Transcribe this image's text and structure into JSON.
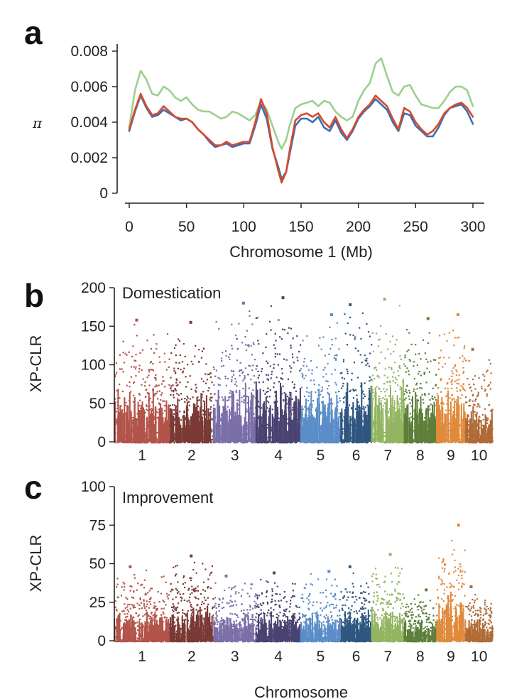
{
  "chart_data": [
    {
      "panel": "a",
      "type": "line",
      "ylabel": "π",
      "xlabel": "Chromosome 1 (Mb)",
      "xlim": [
        0,
        300
      ],
      "ylim": [
        0,
        0.008
      ],
      "xticks": [
        0,
        50,
        100,
        150,
        200,
        250,
        300
      ],
      "yticks": [
        "0",
        "0.002",
        "0.004",
        "0.006",
        "0.008"
      ],
      "x": [
        0,
        5,
        10,
        15,
        20,
        25,
        30,
        35,
        40,
        45,
        50,
        55,
        60,
        65,
        70,
        75,
        80,
        85,
        90,
        95,
        100,
        105,
        110,
        115,
        120,
        125,
        130,
        133,
        137,
        140,
        145,
        150,
        155,
        160,
        165,
        170,
        175,
        180,
        185,
        190,
        195,
        200,
        205,
        210,
        215,
        220,
        225,
        230,
        235,
        240,
        245,
        250,
        255,
        260,
        265,
        270,
        275,
        280,
        285,
        290,
        295,
        300
      ],
      "series": [
        {
          "color": "#9ecf8f",
          "values": [
            0.0037,
            0.0058,
            0.0069,
            0.0064,
            0.0056,
            0.0055,
            0.006,
            0.0058,
            0.0054,
            0.0052,
            0.0054,
            0.005,
            0.0047,
            0.0046,
            0.0046,
            0.0044,
            0.0042,
            0.0043,
            0.0046,
            0.0045,
            0.0043,
            0.0041,
            0.0044,
            0.0052,
            0.0047,
            0.0038,
            0.0029,
            0.0025,
            0.003,
            0.0038,
            0.0048,
            0.005,
            0.0051,
            0.0052,
            0.0049,
            0.0052,
            0.0051,
            0.0046,
            0.0043,
            0.0041,
            0.0043,
            0.0052,
            0.0058,
            0.0062,
            0.0073,
            0.0076,
            0.0066,
            0.0057,
            0.0055,
            0.006,
            0.0061,
            0.0055,
            0.005,
            0.0049,
            0.0048,
            0.0048,
            0.0052,
            0.0057,
            0.006,
            0.006,
            0.0058,
            0.0049
          ]
        },
        {
          "color": "#3b6fb6",
          "values": [
            0.0035,
            0.0046,
            0.0055,
            0.0048,
            0.0043,
            0.0044,
            0.0047,
            0.0045,
            0.0043,
            0.0041,
            0.0042,
            0.004,
            0.0036,
            0.0033,
            0.0029,
            0.0026,
            0.0027,
            0.0028,
            0.0026,
            0.0027,
            0.0028,
            0.0028,
            0.0038,
            0.005,
            0.0042,
            0.0025,
            0.0015,
            0.0008,
            0.0012,
            0.0022,
            0.0038,
            0.0042,
            0.0042,
            0.004,
            0.0043,
            0.0037,
            0.0035,
            0.0041,
            0.0034,
            0.003,
            0.0035,
            0.0042,
            0.0046,
            0.0049,
            0.0053,
            0.005,
            0.0047,
            0.004,
            0.0035,
            0.0045,
            0.0044,
            0.0038,
            0.0035,
            0.0032,
            0.0032,
            0.0037,
            0.0044,
            0.0048,
            0.0049,
            0.005,
            0.0046,
            0.0039
          ]
        },
        {
          "color": "#d94a2b",
          "values": [
            0.0036,
            0.0047,
            0.0056,
            0.0049,
            0.0044,
            0.0045,
            0.0049,
            0.0046,
            0.0043,
            0.0042,
            0.0042,
            0.004,
            0.0036,
            0.0033,
            0.003,
            0.0027,
            0.0027,
            0.0029,
            0.0027,
            0.0028,
            0.0029,
            0.0029,
            0.004,
            0.0053,
            0.0045,
            0.0026,
            0.0013,
            0.0006,
            0.0012,
            0.0024,
            0.0041,
            0.0044,
            0.0045,
            0.0043,
            0.0045,
            0.004,
            0.0037,
            0.0043,
            0.0036,
            0.0031,
            0.0036,
            0.0043,
            0.0047,
            0.005,
            0.0055,
            0.0052,
            0.0049,
            0.0042,
            0.0036,
            0.0048,
            0.0046,
            0.004,
            0.0036,
            0.0033,
            0.0035,
            0.0039,
            0.0045,
            0.0048,
            0.005,
            0.0051,
            0.0048,
            0.0043
          ]
        }
      ]
    },
    {
      "panel": "b",
      "type": "scatter",
      "title": "Domestication",
      "ylabel": "XP-CLR",
      "xlabel": "",
      "ylim": [
        0,
        200
      ],
      "yticks": [
        0,
        50,
        100,
        150,
        200
      ],
      "categories": [
        "1",
        "2",
        "3",
        "4",
        "5",
        "6",
        "7",
        "8",
        "9",
        "10"
      ],
      "chromosome_colors": [
        "#b2544a",
        "#7a3a35",
        "#7b6fa8",
        "#4a4270",
        "#5b8dc8",
        "#2e5680",
        "#93b561",
        "#5e7f3a",
        "#e08a3c",
        "#b06a35"
      ],
      "chromosome_sizes": [
        301,
        237,
        232,
        241,
        217,
        169,
        176,
        175,
        157,
        149
      ],
      "chromosome_max": [
        158,
        155,
        180,
        187,
        165,
        178,
        185,
        160,
        165,
        120
      ]
    },
    {
      "panel": "c",
      "type": "scatter",
      "title": "Improvement",
      "ylabel": "XP-CLR",
      "xlabel": "Chromosome",
      "ylim": [
        0,
        100
      ],
      "yticks": [
        0,
        25,
        50,
        75,
        100
      ],
      "categories": [
        "1",
        "2",
        "3",
        "4",
        "5",
        "6",
        "7",
        "8",
        "9",
        "10"
      ],
      "chromosome_colors": [
        "#b2544a",
        "#7a3a35",
        "#7b6fa8",
        "#4a4270",
        "#5b8dc8",
        "#2e5680",
        "#93b561",
        "#5e7f3a",
        "#e08a3c",
        "#b06a35"
      ],
      "chromosome_sizes": [
        301,
        237,
        232,
        241,
        217,
        169,
        176,
        175,
        157,
        149
      ],
      "chromosome_max": [
        48,
        55,
        42,
        44,
        45,
        48,
        56,
        33,
        75,
        35
      ]
    }
  ]
}
